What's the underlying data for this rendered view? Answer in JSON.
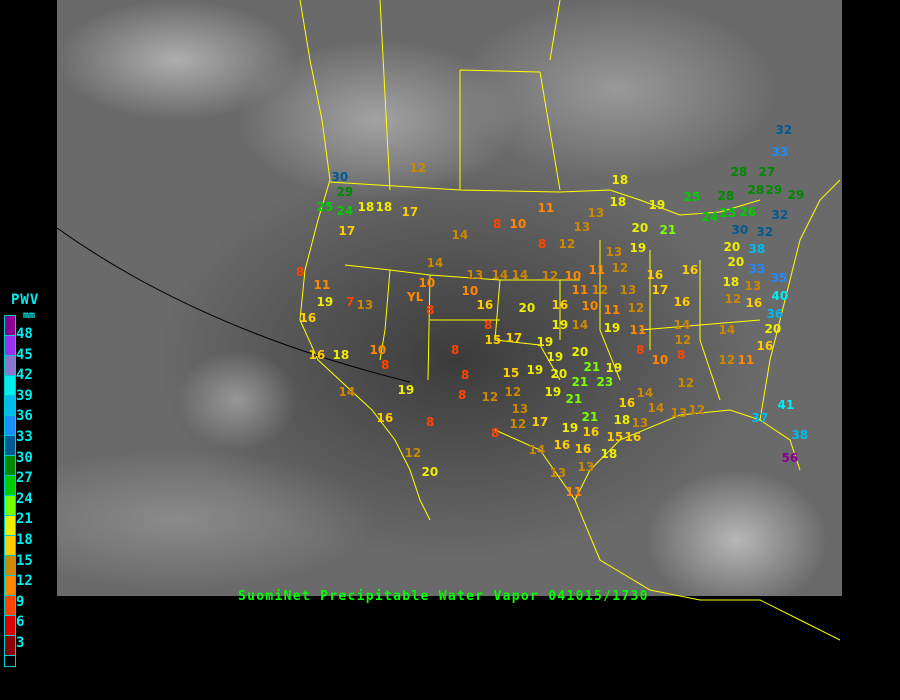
{
  "title": "SuomiNet Precipitable Water Vapor 041015/1730",
  "legend": {
    "title": "PWV",
    "unit": "mm",
    "ticks": [
      "48",
      "45",
      "42",
      "39",
      "36",
      "33",
      "30",
      "27",
      "24",
      "21",
      "18",
      "15",
      "12",
      "9",
      "6",
      "3"
    ],
    "colors": [
      "#8a0090",
      "#9933ee",
      "#8877cc",
      "#00eeee",
      "#00bbee",
      "#1a8cff",
      "#005a90",
      "#008800",
      "#00cc00",
      "#77ff00",
      "#eeee00",
      "#ffcc00",
      "#cc8800",
      "#ff8800",
      "#ff4400",
      "#dd0000",
      "#880000"
    ]
  },
  "stations": [
    "30",
    "29",
    "24",
    "25",
    "17",
    "18",
    "18",
    "17",
    "12",
    "14",
    "8",
    "10",
    "11",
    "8",
    "12",
    "13",
    "13",
    "18",
    "18",
    "19",
    "25",
    "28",
    "28",
    "27",
    "28",
    "29",
    "29",
    "32",
    "33",
    "32",
    "32",
    "26",
    "25",
    "24",
    "30",
    "20",
    "38",
    "33",
    "20",
    "20",
    "21",
    "19",
    "13",
    "12",
    "11",
    "10",
    "12",
    "14",
    "14",
    "13",
    "14",
    "10",
    "YL",
    "8",
    "10",
    "16",
    "8",
    "15",
    "17",
    "20",
    "16",
    "10",
    "11",
    "12",
    "11",
    "12",
    "13",
    "16",
    "17",
    "16",
    "16",
    "18",
    "12",
    "16",
    "13",
    "35",
    "40",
    "36",
    "20",
    "16",
    "14",
    "14",
    "11",
    "19",
    "14",
    "19",
    "19",
    "19",
    "20",
    "21",
    "21",
    "20",
    "19",
    "19",
    "23",
    "19",
    "21",
    "21",
    "15",
    "12",
    "13",
    "12",
    "12",
    "17",
    "8",
    "10",
    "8",
    "12",
    "12",
    "14",
    "16",
    "18",
    "15",
    "16",
    "16",
    "19",
    "16",
    "18",
    "13",
    "14",
    "13",
    "12",
    "12",
    "11",
    "37",
    "41",
    "38",
    "56",
    "16",
    "14",
    "13",
    "13",
    "11",
    "8",
    "8",
    "12",
    "20",
    "16",
    "19",
    "14",
    "16",
    "18",
    "16",
    "19",
    "11",
    "7",
    "13",
    "8",
    "10",
    "8",
    "8",
    "8",
    "8"
  ]
}
